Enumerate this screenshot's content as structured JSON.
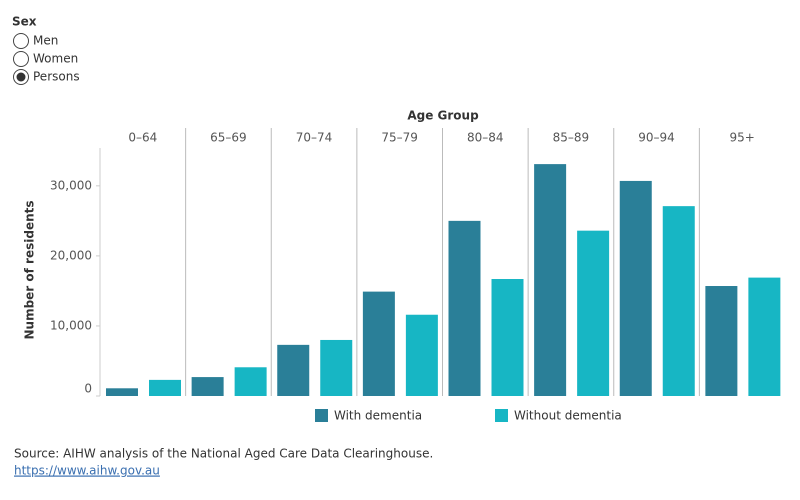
{
  "filter": {
    "label": "Sex",
    "options": [
      "Men",
      "Women",
      "Persons"
    ],
    "selected": "Persons"
  },
  "chart_data": {
    "type": "bar",
    "x_label": "Age Group",
    "y_label": "Number of residents",
    "categories": [
      "0–64",
      "65–69",
      "70–74",
      "75–79",
      "80–84",
      "85–89",
      "90–94",
      "95+"
    ],
    "series": [
      {
        "name": "With dementia",
        "color": "#2a7f98",
        "values": [
          1100,
          2700,
          7300,
          14900,
          25000,
          33100,
          30700,
          15700
        ]
      },
      {
        "name": "Without dementia",
        "color": "#17b6c4",
        "values": [
          2300,
          4100,
          8000,
          11600,
          16700,
          23600,
          27100,
          16900
        ]
      }
    ],
    "ylim": [
      0,
      35400
    ],
    "yticks": [
      0,
      {
        "value": 10000,
        "label": "10,000"
      },
      {
        "value": 20000,
        "label": "20,000"
      },
      {
        "value": 30000,
        "label": "30,000"
      }
    ]
  },
  "footer": {
    "source": "Source: AIHW analysis of the National Aged Care Data Clearinghouse.",
    "link": "https://www.aihw.gov.au"
  }
}
